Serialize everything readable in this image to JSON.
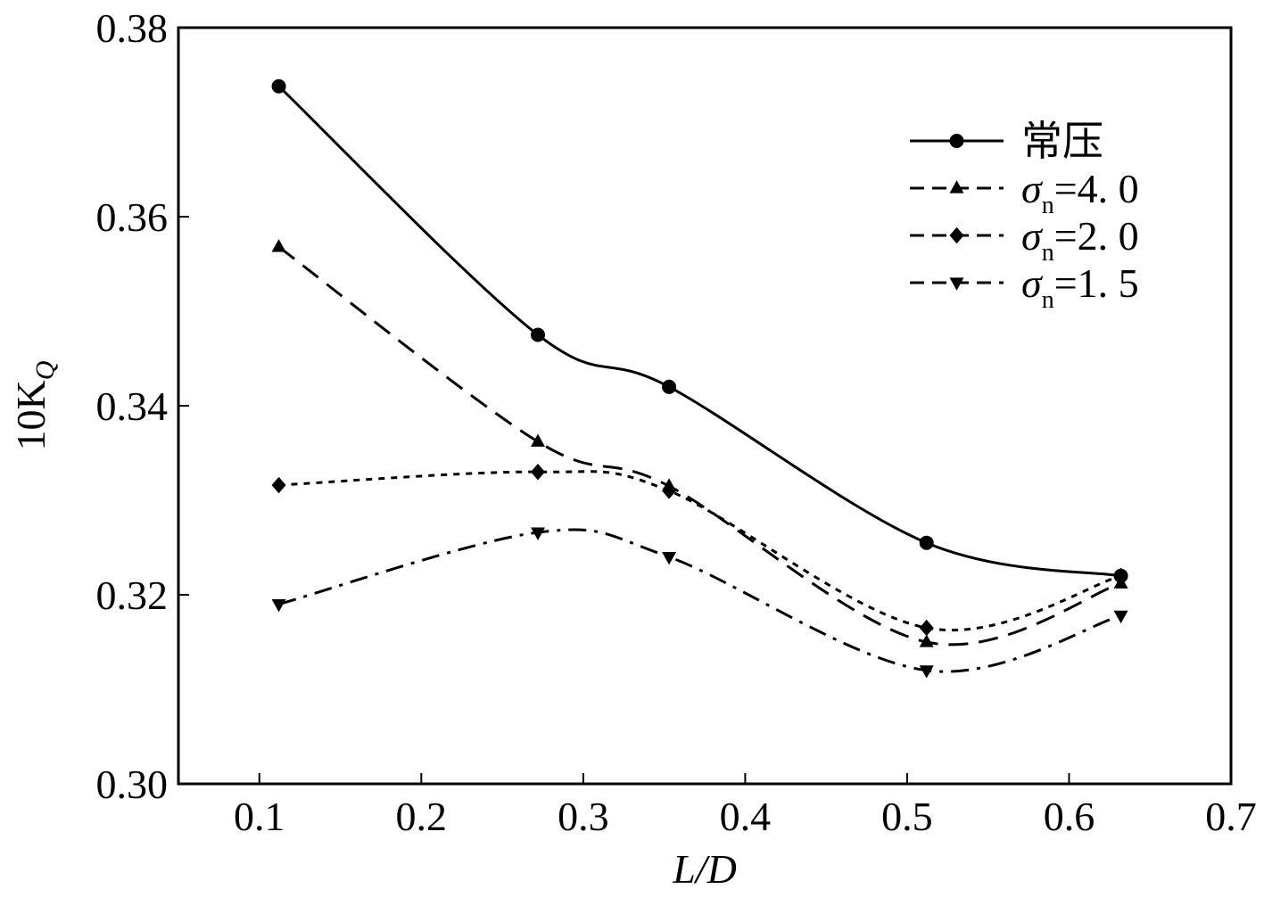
{
  "chart_data": {
    "type": "line",
    "xlabel": "L/D",
    "ylabel_prefix": "10K",
    "ylabel_sub": "Q",
    "xlim": [
      0.05,
      0.7
    ],
    "ylim": [
      0.3,
      0.38
    ],
    "xticks": [
      0.1,
      0.2,
      0.3,
      0.4,
      0.5,
      0.6,
      0.7
    ],
    "xtick_labels": [
      "0.1",
      "0.2",
      "0.3",
      "0.4",
      "0.5",
      "0.6",
      "0.7"
    ],
    "yticks": [
      0.3,
      0.32,
      0.34,
      0.36,
      0.38
    ],
    "ytick_labels": [
      "0.30",
      "0.32",
      "0.34",
      "0.36",
      "0.38"
    ],
    "grid": false,
    "legend_position": "top-right",
    "series": [
      {
        "name": "常压",
        "marker": "circle",
        "line_style": "solid",
        "x": [
          0.112,
          0.272,
          0.353,
          0.512,
          0.632
        ],
        "y": [
          0.3738,
          0.3475,
          0.342,
          0.3255,
          0.322
        ]
      },
      {
        "name": "σn=4. 0",
        "name_symbol": "σ",
        "name_sub": "n",
        "name_rest": "=4. 0",
        "marker": "triangle-up",
        "line_style": "dashed",
        "x": [
          0.112,
          0.272,
          0.353,
          0.512,
          0.632
        ],
        "y": [
          0.3568,
          0.3362,
          0.3315,
          0.315,
          0.3212
        ]
      },
      {
        "name": "σn=2. 0",
        "name_symbol": "σ",
        "name_sub": "n",
        "name_rest": "=2. 0",
        "marker": "diamond",
        "line_style": "dotted",
        "x": [
          0.112,
          0.272,
          0.353,
          0.512,
          0.632
        ],
        "y": [
          0.3316,
          0.333,
          0.331,
          0.3165,
          0.322
        ]
      },
      {
        "name": "σn=1. 5",
        "name_symbol": "σ",
        "name_sub": "n",
        "name_rest": "=1. 5",
        "marker": "triangle-down",
        "line_style": "dashdot",
        "x": [
          0.112,
          0.272,
          0.353,
          0.512,
          0.632
        ],
        "y": [
          0.319,
          0.3266,
          0.324,
          0.312,
          0.3178
        ]
      }
    ]
  }
}
